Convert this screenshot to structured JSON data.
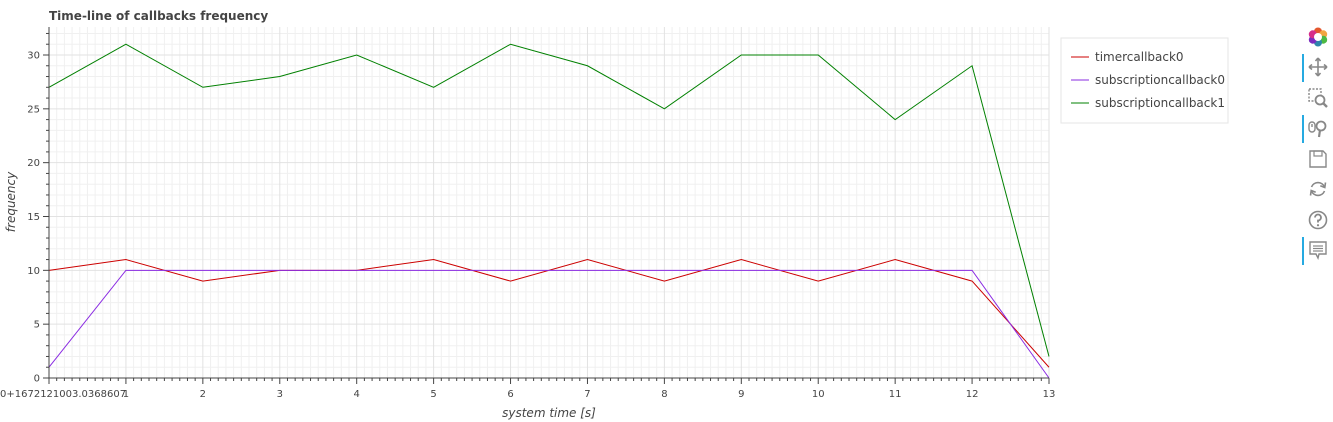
{
  "chart_data": {
    "type": "line",
    "title": "Time-line of callbacks frequency",
    "xlabel": "system time [s]",
    "ylabel": "frequency",
    "xlim": [
      0,
      13
    ],
    "ylim": [
      0,
      32.6
    ],
    "x_ticks": [
      0,
      1,
      2,
      3,
      4,
      5,
      6,
      7,
      8,
      9,
      10,
      11,
      12,
      13
    ],
    "x_tick_labels": [
      "0+1672121003.0368607",
      "1",
      "2",
      "3",
      "4",
      "5",
      "6",
      "7",
      "8",
      "9",
      "10",
      "11",
      "12",
      "13"
    ],
    "y_ticks": [
      0,
      5,
      10,
      15,
      20,
      25,
      30
    ],
    "y_tick_labels": [
      "0",
      "5",
      "10",
      "15",
      "20",
      "25",
      "30"
    ],
    "grid": true,
    "legend_position": "top-right outside",
    "series": [
      {
        "name": "timercallback0",
        "color": "#cc0000",
        "x": [
          0,
          1,
          2,
          3,
          4,
          5,
          6,
          7,
          8,
          9,
          10,
          11,
          12,
          13
        ],
        "y": [
          10,
          11,
          9,
          10,
          10,
          11,
          9,
          11,
          9,
          11,
          9,
          11,
          9,
          1
        ]
      },
      {
        "name": "subscriptioncallback0",
        "color": "#8a2be2",
        "x": [
          0,
          1,
          2,
          3,
          4,
          5,
          6,
          7,
          8,
          9,
          10,
          11,
          12,
          13
        ],
        "y": [
          1,
          10,
          10,
          10,
          10,
          10,
          10,
          10,
          10,
          10,
          10,
          10,
          10,
          0
        ]
      },
      {
        "name": "subscriptioncallback1",
        "color": "#008000",
        "x": [
          0,
          1,
          2,
          3,
          4,
          5,
          6,
          7,
          8,
          9,
          10,
          11,
          12,
          13
        ],
        "y": [
          27,
          31,
          27,
          28,
          30,
          27,
          31,
          29,
          25,
          30,
          30,
          24,
          29,
          2
        ]
      }
    ]
  },
  "toolbar": {
    "tools": [
      {
        "name": "bokeh-logo-icon",
        "active": false
      },
      {
        "name": "pan-icon",
        "active": true
      },
      {
        "name": "box-zoom-icon",
        "active": false
      },
      {
        "name": "wheel-zoom-icon",
        "active": true
      },
      {
        "name": "save-icon",
        "active": false
      },
      {
        "name": "reset-icon",
        "active": false
      },
      {
        "name": "help-icon",
        "active": false
      },
      {
        "name": "hover-icon",
        "active": true
      }
    ]
  }
}
